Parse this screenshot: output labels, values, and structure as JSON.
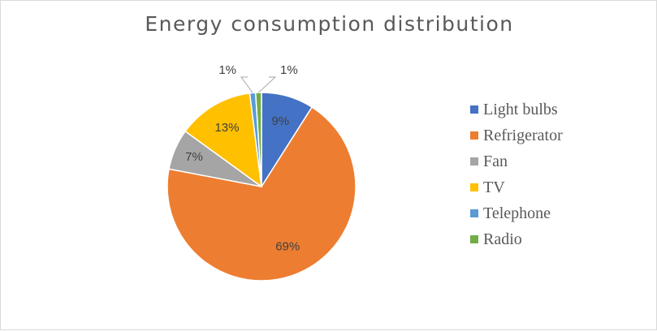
{
  "chart_data": {
    "type": "pie",
    "title": "Energy consumption distribution",
    "categories": [
      "Light bulbs",
      "Refrigerator",
      "Fan",
      "TV",
      "Telephone",
      "Radio"
    ],
    "values": [
      9,
      69,
      7,
      13,
      1,
      1
    ],
    "data_labels": [
      "9%",
      "69%",
      "7%",
      "13%",
      "1%",
      "1%"
    ],
    "colors": [
      "#4472C4",
      "#ED7D31",
      "#A5A5A5",
      "#FFC000",
      "#5B9BD5",
      "#70AD47"
    ],
    "legend_position": "right"
  }
}
